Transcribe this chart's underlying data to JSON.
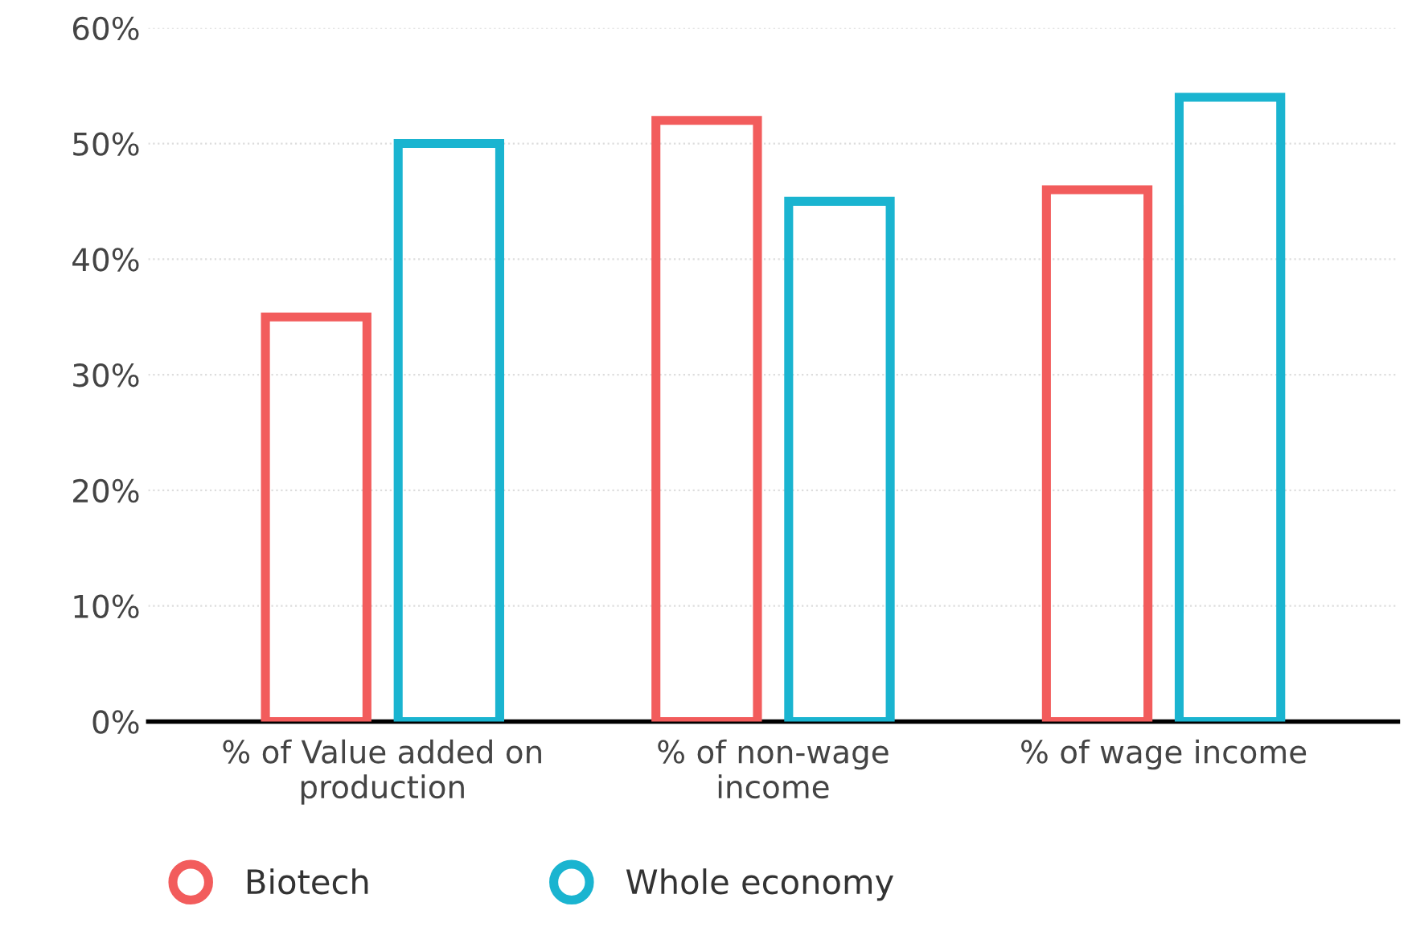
{
  "chart_data": {
    "type": "bar",
    "categories": [
      "% of Value added on\nproduction",
      "% of non-wage\nincome",
      "% of wage income"
    ],
    "series": [
      {
        "name": "Biotech",
        "color": "#f25c5c",
        "values": [
          35,
          52,
          46
        ]
      },
      {
        "name": "Whole economy",
        "color": "#1ab4d0",
        "values": [
          50,
          45,
          54
        ]
      }
    ],
    "ylim": [
      0,
      60
    ],
    "yticks": [
      {
        "value": 0,
        "label": "0%"
      },
      {
        "value": 10,
        "label": "10%"
      },
      {
        "value": 20,
        "label": "20%"
      },
      {
        "value": 30,
        "label": "30%"
      },
      {
        "value": 40,
        "label": "40%"
      },
      {
        "value": 50,
        "label": "50%"
      },
      {
        "value": 60,
        "label": "60%"
      }
    ],
    "grid": "y",
    "legend": "bottom"
  }
}
